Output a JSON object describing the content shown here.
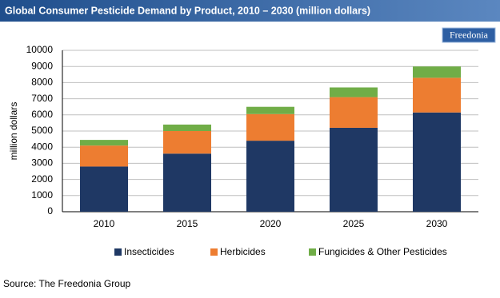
{
  "chart_data": {
    "type": "stacked_bar",
    "title": "Global Consumer Pesticide Demand by Product, 2010 – 2030 (million dollars)",
    "logo": "Freedonia",
    "y_label": "million dollars",
    "source": "Source: The Freedonia Group",
    "categories": [
      "2010",
      "2015",
      "2020",
      "2025",
      "2030"
    ],
    "series": [
      {
        "name": "Insecticides",
        "color": "#1f3864",
        "values": [
          2800,
          3600,
          4400,
          5200,
          6150
        ]
      },
      {
        "name": "Herbicides",
        "color": "#ed7d31",
        "values": [
          1300,
          1400,
          1650,
          1900,
          2150
        ]
      },
      {
        "name": "Fungicides & Other Pesticides",
        "color": "#70ad47",
        "values": [
          350,
          400,
          450,
          600,
          700
        ]
      }
    ],
    "ylim": [
      0,
      10000
    ],
    "yticks": [
      0,
      1000,
      2000,
      3000,
      4000,
      5000,
      6000,
      7000,
      8000,
      9000,
      10000
    ],
    "grid": true
  }
}
